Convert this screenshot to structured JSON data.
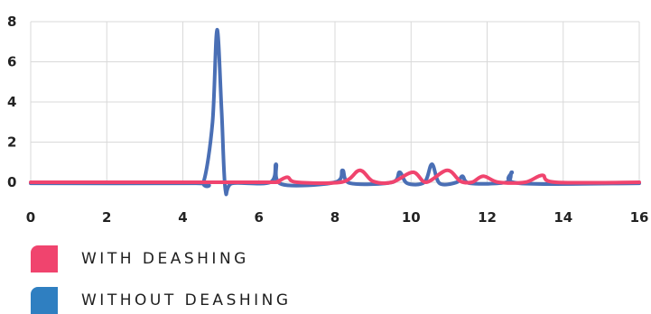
{
  "chart_data": {
    "type": "line",
    "title": "",
    "xlabel": "",
    "ylabel": "",
    "xlim": [
      0,
      16
    ],
    "ylim": [
      0,
      8
    ],
    "x_ticks": [
      0,
      2,
      4,
      6,
      8,
      10,
      12,
      14,
      16
    ],
    "y_ticks": [
      0,
      2,
      4,
      6,
      8
    ],
    "grid": true,
    "legend_position": "bottom-left",
    "series": [
      {
        "name": "WITH DEASHING",
        "color": "#f0446e",
        "points": [
          [
            0,
            0
          ],
          [
            4,
            0
          ],
          [
            6.3,
            0
          ],
          [
            6.5,
            0.05
          ],
          [
            6.75,
            0.25
          ],
          [
            7.0,
            0.0
          ],
          [
            8.2,
            0.02
          ],
          [
            8.65,
            0.6
          ],
          [
            9.0,
            0.05
          ],
          [
            9.5,
            0.0
          ],
          [
            10.05,
            0.5
          ],
          [
            10.4,
            0.0
          ],
          [
            10.95,
            0.6
          ],
          [
            11.3,
            0.05
          ],
          [
            11.6,
            0.0
          ],
          [
            11.9,
            0.3
          ],
          [
            12.3,
            0.0
          ],
          [
            13.0,
            0.0
          ],
          [
            13.45,
            0.35
          ],
          [
            13.8,
            0.0
          ],
          [
            16,
            0
          ]
        ]
      },
      {
        "name": "WITHOUT DEASHING",
        "color": "#4a6fb5",
        "points": [
          [
            0,
            -0.05
          ],
          [
            4.3,
            -0.05
          ],
          [
            4.55,
            0.05
          ],
          [
            4.78,
            3.0
          ],
          [
            4.9,
            7.6
          ],
          [
            5.02,
            3.5
          ],
          [
            5.12,
            -0.4
          ],
          [
            5.3,
            -0.05
          ],
          [
            6.3,
            0.0
          ],
          [
            6.45,
            0.9
          ],
          [
            6.6,
            -0.1
          ],
          [
            8.0,
            0.0
          ],
          [
            8.2,
            0.6
          ],
          [
            8.4,
            -0.05
          ],
          [
            9.5,
            0.0
          ],
          [
            9.7,
            0.5
          ],
          [
            9.9,
            -0.05
          ],
          [
            10.35,
            0.0
          ],
          [
            10.55,
            0.9
          ],
          [
            10.75,
            -0.05
          ],
          [
            11.2,
            0.0
          ],
          [
            11.35,
            0.3
          ],
          [
            11.55,
            -0.05
          ],
          [
            12.5,
            0.0
          ],
          [
            12.65,
            0.5
          ],
          [
            12.85,
            -0.05
          ],
          [
            16,
            -0.05
          ]
        ]
      }
    ]
  }
}
